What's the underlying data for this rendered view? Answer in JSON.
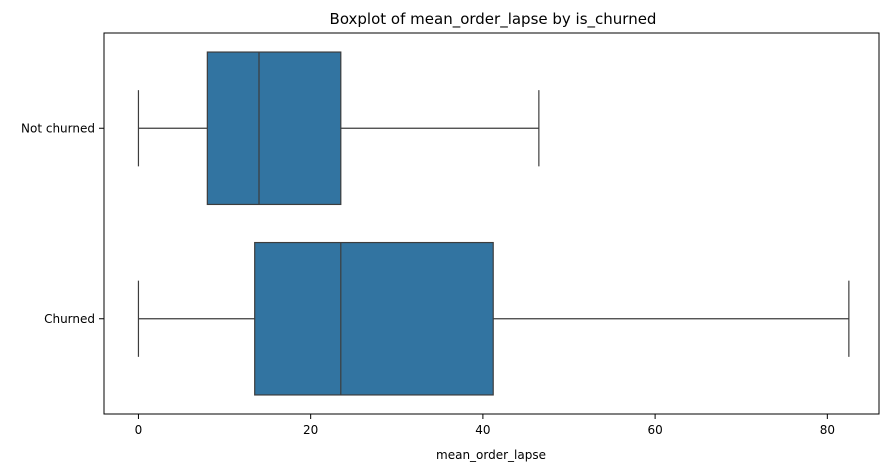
{
  "chart_data": {
    "type": "boxplot",
    "orientation": "horizontal",
    "title": "Boxplot of mean_order_lapse by is_churned",
    "xlabel": "mean_order_lapse",
    "ylabel": "",
    "xlim": [
      -4,
      86
    ],
    "xticks": [
      0,
      20,
      40,
      60,
      80
    ],
    "categories": [
      "Not churned",
      "Churned"
    ],
    "boxes": [
      {
        "category": "Not churned",
        "whisker_low": 0,
        "q1": 8,
        "median": 14,
        "q3": 23.5,
        "whisker_high": 46.5
      },
      {
        "category": "Churned",
        "whisker_low": 0,
        "q1": 13.5,
        "median": 23.5,
        "q3": 41.2,
        "whisker_high": 82.5
      }
    ],
    "grid": false,
    "colors": {
      "box_fill": "#3274a1",
      "line": "#3d3d3d",
      "axis": "#000000"
    }
  }
}
